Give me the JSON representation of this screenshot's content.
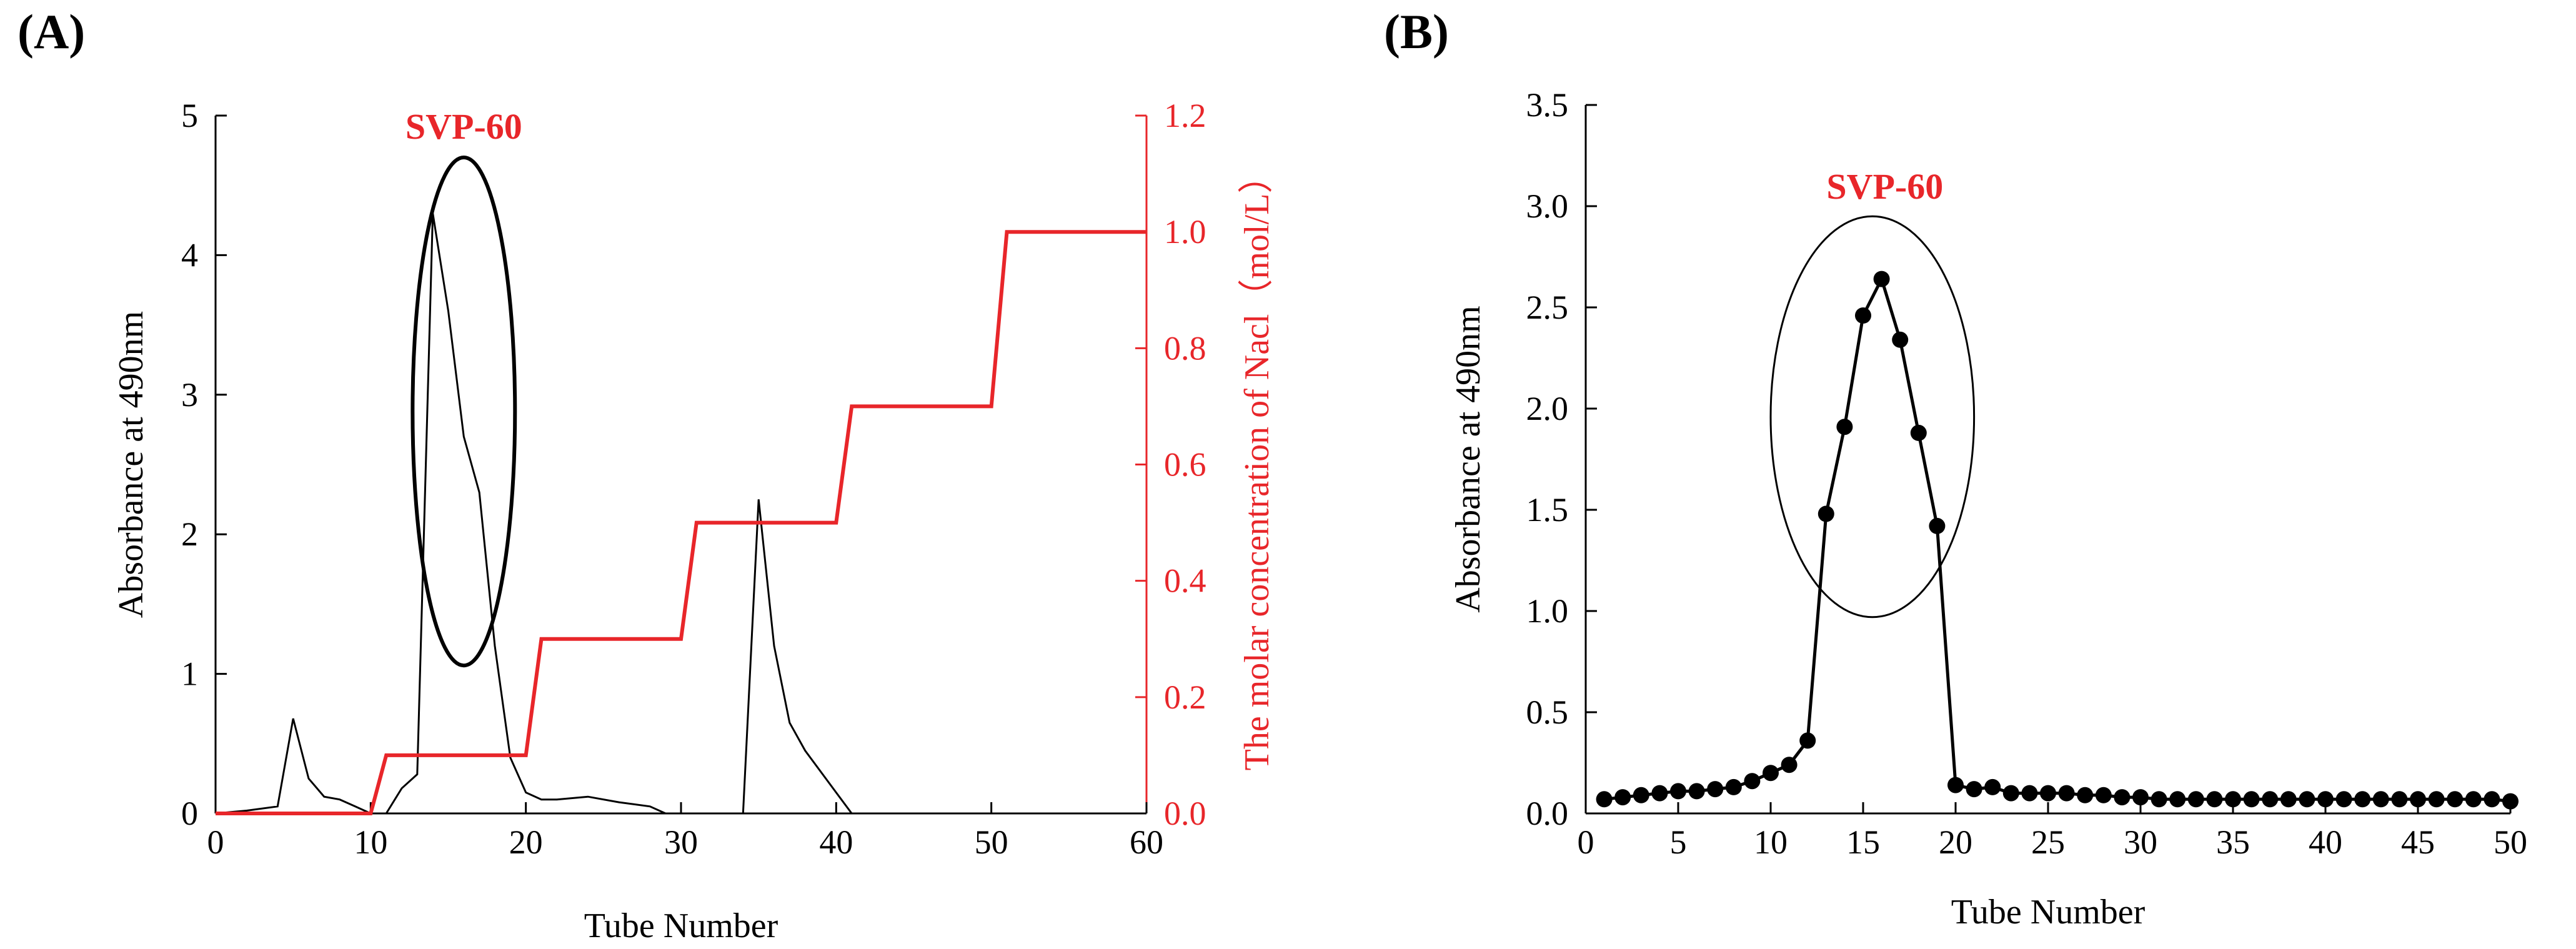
{
  "panels": {
    "a_label": "(A)",
    "b_label": "(B)"
  },
  "colors": {
    "absorbance": "#000000",
    "nacl": "#e8262a",
    "annotation": "#e8262a"
  },
  "chart_data": [
    {
      "panel": "(A)",
      "type": "line",
      "xlabel": "Tube Number",
      "ylabel": "Absorbance at 490nm",
      "y2label": "The molar concentration of Nacl（mol/L）",
      "xlim": [
        0,
        60
      ],
      "ylim": [
        0,
        5
      ],
      "y2lim": [
        0,
        1.2
      ],
      "xticks": [
        "0",
        "10",
        "20",
        "30",
        "40",
        "50",
        "60"
      ],
      "yticks": [
        "0",
        "1",
        "2",
        "3",
        "4",
        "5"
      ],
      "y2ticks": [
        "0.0",
        "0.2",
        "0.4",
        "0.6",
        "0.8",
        "1.0",
        "1.2"
      ],
      "annotation": "SVP-60",
      "series": [
        {
          "name": "Absorbance at 490nm",
          "axis": "left",
          "x": [
            0,
            2,
            4,
            5,
            6,
            7,
            8,
            9,
            10,
            11,
            12,
            13,
            14,
            15,
            16,
            17,
            18,
            19,
            20,
            21,
            22,
            24,
            26,
            28,
            29,
            30,
            33,
            34,
            35,
            36,
            37,
            38,
            39,
            40,
            41,
            42,
            45,
            60
          ],
          "y": [
            0,
            0.02,
            0.05,
            0.68,
            0.25,
            0.12,
            0.1,
            0.05,
            0,
            0,
            0.18,
            0.28,
            4.3,
            3.6,
            2.7,
            2.3,
            1.2,
            0.4,
            0.15,
            0.1,
            0.1,
            0.12,
            0.08,
            0.05,
            0,
            0,
            0,
            0,
            2.25,
            1.2,
            0.65,
            0.45,
            0.3,
            0.15,
            0,
            0,
            0,
            0
          ]
        },
        {
          "name": "The molar concentration of Nacl",
          "axis": "right",
          "x": [
            0,
            10,
            11,
            20,
            21,
            30,
            31,
            40,
            41,
            50,
            51,
            60
          ],
          "y": [
            0,
            0,
            0.1,
            0.1,
            0.3,
            0.3,
            0.5,
            0.5,
            0.7,
            0.7,
            1.0,
            1.0
          ]
        }
      ],
      "ellipse": {
        "cx": 16,
        "cy": 2.88,
        "rx": 3.3,
        "ry": 1.82
      }
    },
    {
      "panel": "(B)",
      "type": "line",
      "markers": true,
      "xlabel": "Tube Number",
      "ylabel": "Absorbance at 490nm",
      "xlim": [
        0,
        50
      ],
      "ylim": [
        0,
        3.5
      ],
      "xticks": [
        "0",
        "5",
        "10",
        "15",
        "20",
        "25",
        "30",
        "35",
        "40",
        "45",
        "50"
      ],
      "yticks": [
        "0.0",
        "0.5",
        "1.0",
        "1.5",
        "2.0",
        "2.5",
        "3.0",
        "3.5"
      ],
      "annotation": "SVP-60",
      "series": [
        {
          "name": "Absorbance at 490nm",
          "x": [
            1,
            2,
            3,
            4,
            5,
            6,
            7,
            8,
            9,
            10,
            11,
            12,
            13,
            14,
            15,
            16,
            17,
            18,
            19,
            20,
            21,
            22,
            23,
            24,
            25,
            26,
            27,
            28,
            29,
            30,
            31,
            32,
            33,
            34,
            35,
            36,
            37,
            38,
            39,
            40,
            41,
            42,
            43,
            44,
            45,
            46,
            47,
            48,
            49,
            50
          ],
          "y": [
            0.07,
            0.08,
            0.09,
            0.1,
            0.11,
            0.11,
            0.12,
            0.13,
            0.16,
            0.2,
            0.24,
            0.36,
            1.48,
            1.91,
            2.46,
            2.64,
            2.34,
            1.88,
            1.42,
            0.14,
            0.12,
            0.13,
            0.1,
            0.1,
            0.1,
            0.1,
            0.09,
            0.09,
            0.08,
            0.08,
            0.07,
            0.07,
            0.07,
            0.07,
            0.07,
            0.07,
            0.07,
            0.07,
            0.07,
            0.07,
            0.07,
            0.07,
            0.07,
            0.07,
            0.07,
            0.07,
            0.07,
            0.07,
            0.07,
            0.06
          ]
        }
      ],
      "ellipse": {
        "cx": 15.5,
        "cy": 1.96,
        "rx": 5.5,
        "ry": 0.99
      }
    }
  ]
}
